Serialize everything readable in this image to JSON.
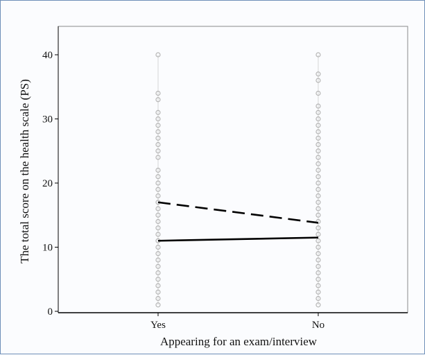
{
  "chart_data": {
    "type": "scatter",
    "title": "",
    "xlabel": "Appearing for an exam/interview",
    "ylabel": "The total score on the health scale (PS)",
    "categories": [
      "Yes",
      "No"
    ],
    "ylim": [
      0,
      45
    ],
    "yticks": [
      0,
      10,
      20,
      30,
      40
    ],
    "grid": false,
    "legend": "none",
    "points": {
      "Yes": [
        1,
        2,
        3,
        4,
        5,
        6,
        7,
        8,
        9,
        10,
        11,
        12,
        13,
        14,
        15,
        16,
        17,
        18,
        19,
        20,
        21,
        22,
        24,
        25,
        26,
        27,
        28,
        29,
        30,
        31,
        33,
        34,
        40
      ],
      "No": [
        1,
        2,
        3,
        4,
        5,
        6,
        7,
        8,
        9,
        10,
        11,
        12,
        13,
        14,
        15,
        16,
        17,
        18,
        19,
        20,
        21,
        22,
        23,
        24,
        25,
        26,
        27,
        28,
        29,
        30,
        31,
        32,
        34,
        36,
        37,
        40
      ]
    },
    "series": [
      {
        "style": "solid",
        "values": [
          11.0,
          11.5
        ]
      },
      {
        "style": "dashed",
        "values": [
          17.0,
          13.8
        ]
      }
    ],
    "colors": {
      "points": "#b5b5b5",
      "lines": "#000000",
      "axis": "#000000"
    }
  }
}
